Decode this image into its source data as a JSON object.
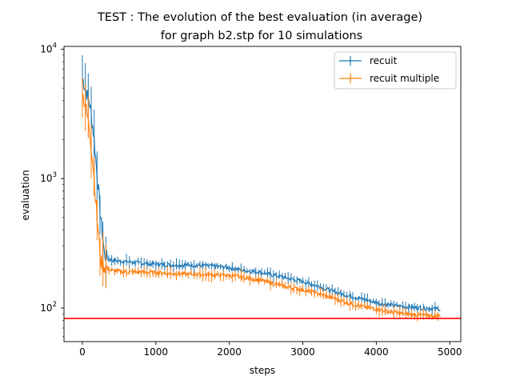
{
  "chart_data": {
    "type": "line",
    "title_line1": "TEST : The evolution of the best evaluation (in average)",
    "title_line2": "for graph b2.stp for 10 simulations",
    "xlabel": "steps",
    "ylabel": "evaluation",
    "xlim": [
      -250,
      5150
    ],
    "ylim": [
      55,
      10500
    ],
    "yscale": "log",
    "x_ticks": [
      0,
      1000,
      2000,
      3000,
      4000,
      5000
    ],
    "y_ticks": [
      {
        "value": 100,
        "base": "10",
        "exp": "2"
      },
      {
        "value": 1000,
        "base": "10",
        "exp": "3"
      },
      {
        "value": 10000,
        "base": "10",
        "exp": "4"
      }
    ],
    "legend_position": "upper right",
    "reference_line": {
      "y": 83,
      "color": "#ff0000"
    },
    "series": [
      {
        "name": "recuit",
        "color": "#1f77b4",
        "x": [
          0,
          50,
          100,
          150,
          200,
          250,
          300,
          350,
          400,
          500,
          600,
          700,
          800,
          900,
          1000,
          1200,
          1400,
          1600,
          1800,
          2000,
          2200,
          2400,
          2600,
          2800,
          3000,
          3200,
          3400,
          3600,
          3800,
          4000,
          4200,
          4400,
          4600,
          4800,
          4870
        ],
        "y": [
          6000,
          4800,
          3800,
          2300,
          1100,
          500,
          260,
          240,
          235,
          230,
          228,
          225,
          222,
          220,
          218,
          215,
          215,
          213,
          210,
          205,
          195,
          190,
          180,
          170,
          160,
          148,
          135,
          125,
          118,
          110,
          105,
          102,
          100,
          99,
          98
        ]
      },
      {
        "name": "recuit multiple",
        "color": "#ff7f0e",
        "x": [
          0,
          50,
          100,
          150,
          200,
          250,
          300,
          350,
          400,
          500,
          600,
          700,
          800,
          900,
          1000,
          1200,
          1400,
          1600,
          1800,
          2000,
          2200,
          2400,
          2600,
          2800,
          3000,
          3200,
          3400,
          3600,
          3800,
          4000,
          4200,
          4400,
          4600,
          4800,
          4870
        ],
        "y": [
          4600,
          3400,
          2400,
          1200,
          500,
          230,
          210,
          200,
          195,
          192,
          190,
          190,
          190,
          188,
          188,
          185,
          183,
          182,
          180,
          178,
          172,
          165,
          155,
          145,
          138,
          130,
          120,
          110,
          103,
          98,
          93,
          90,
          88,
          87,
          87
        ]
      }
    ]
  }
}
